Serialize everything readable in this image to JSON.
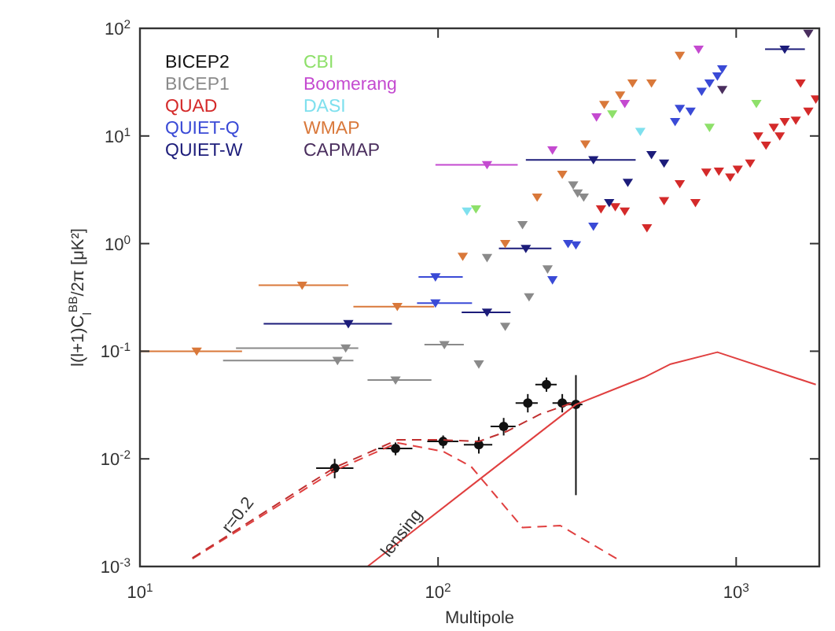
{
  "chart_data": {
    "type": "scatter",
    "xlabel": "Multipole",
    "ylabel": "l(l+1)C$_{l}$$^{BB}$/2π [μK²]",
    "log": "xy",
    "grid": false,
    "legend": "top left",
    "marker": "triangle",
    "xlim": [
      10,
      1900
    ],
    "ylim": [
      0.001,
      100
    ],
    "xticks": [
      {
        "value": 10,
        "label": "10$^{1}$"
      },
      {
        "value": 100,
        "label": "10$^{2}$"
      },
      {
        "value": 1000,
        "label": "10$^{3}$"
      }
    ],
    "yticks": [
      {
        "value": 0.001,
        "label": "10$^{-3}$"
      },
      {
        "value": 0.01,
        "label": "10$^{-2}$"
      },
      {
        "value": 0.1,
        "label": "10$^{-1}$"
      },
      {
        "value": 1,
        "label": "10$^{0}$"
      },
      {
        "value": 10,
        "label": "10$^{1}$"
      },
      {
        "value": 100,
        "label": "10$^{2}$"
      }
    ],
    "annotations": [
      {
        "text": "r=0.2",
        "x": 22,
        "y": 0.0028
      },
      {
        "text": "lensing",
        "x": 78,
        "y": 0.0019
      }
    ],
    "series": [
      {
        "name": "BICEP2",
        "color": "#111111",
        "marker": "circle",
        "x": [
          45,
          72,
          104,
          137,
          166,
          200,
          231,
          261,
          290
        ],
        "values": [
          0.0082,
          0.0125,
          0.0145,
          0.0135,
          0.02,
          0.033,
          0.049,
          0.033,
          0.032
        ],
        "errors": [
          [
            0.0066,
            0.01
          ],
          [
            0.0108,
            0.0142
          ],
          [
            0.0125,
            0.0165
          ],
          [
            0.0112,
            0.016
          ],
          [
            0.0165,
            0.024
          ],
          [
            0.027,
            0.04
          ],
          [
            0.042,
            0.057
          ],
          [
            0.027,
            0.04
          ],
          [
            0.0046,
            0.06
          ]
        ],
        "xerrors": [
          [
            39,
            52
          ],
          [
            63,
            82
          ],
          [
            92,
            117
          ],
          [
            122,
            152
          ],
          [
            150,
            182
          ],
          [
            182,
            216
          ],
          [
            212,
            250
          ],
          [
            242,
            280
          ],
          [
            272,
            305
          ]
        ]
      },
      {
        "name": "BICEP1",
        "color": "#8a8a8a",
        "x": [
          284,
          294,
          308,
          192,
          146,
          233,
          202,
          168,
          105,
          137,
          49,
          46,
          72
        ],
        "values": [
          3.5,
          2.95,
          2.7,
          1.5,
          0.74,
          0.58,
          0.32,
          0.17,
          0.115,
          0.076,
          0.107,
          0.082,
          0.054
        ],
        "xerrors": [
          null,
          null,
          null,
          null,
          null,
          null,
          null,
          null,
          [
            90,
            122
          ],
          null,
          [
            21,
            54
          ],
          [
            19,
            52
          ],
          [
            58,
            95
          ]
        ]
      },
      {
        "name": "QUAD",
        "color": "#d42a2a",
        "x": [
          1644,
          1850,
          1746,
          1585,
          1455,
          1337,
          1185,
          1259,
          1400,
          1114,
          1012,
          955,
          875,
          794,
          647,
          573,
          730,
          502,
          423,
          393,
          352
        ],
        "values": [
          31,
          22,
          17,
          14,
          13.6,
          12,
          10,
          8.2,
          10,
          5.6,
          4.9,
          4.15,
          4.7,
          4.6,
          3.6,
          2.5,
          2.4,
          1.4,
          2,
          2.2,
          2.1
        ]
      },
      {
        "name": "QUIET-Q",
        "color": "#3a4ad6",
        "x": [
          766,
          814,
          865,
          898,
          647,
          703,
          624,
          332,
          273,
          290,
          242,
          98,
          98
        ],
        "values": [
          26,
          31,
          36,
          42,
          18,
          17,
          13.6,
          1.45,
          1,
          0.97,
          0.46,
          0.49,
          0.28
        ],
        "xerrors": [
          null,
          null,
          null,
          null,
          null,
          null,
          null,
          null,
          null,
          null,
          null,
          [
            86,
            121
          ],
          [
            85,
            130
          ]
        ]
      },
      {
        "name": "QUIET-W",
        "color": "#1c1c7a",
        "x": [
          1455,
          332,
          433,
          520,
          573,
          375,
          197,
          50,
          146
        ],
        "values": [
          64,
          6,
          3.7,
          6.7,
          5.6,
          2.4,
          0.9,
          0.18,
          0.23
        ],
        "xerrors": [
          [
            1250,
            1700
          ],
          [
            197,
            460
          ],
          null,
          null,
          null,
          null,
          [
            160,
            240
          ],
          [
            26,
            70
          ],
          [
            120,
            175
          ]
        ]
      },
      {
        "name": "CBI",
        "color": "#8ee06a",
        "x": [
          1169,
          814,
          384,
          134
        ],
        "values": [
          20,
          12,
          16,
          2.1
        ]
      },
      {
        "name": "Boomerang",
        "color": "#c44ad0",
        "x": [
          748,
          423,
          340,
          146,
          242
        ],
        "values": [
          64,
          20,
          15,
          5.4,
          7.4
        ],
        "xerrors": [
          null,
          null,
          null,
          [
            98,
            185
          ],
          null
        ]
      },
      {
        "name": "DASI",
        "color": "#7fe0ee",
        "x": [
          477,
          125
        ],
        "values": [
          11,
          2
        ]
      },
      {
        "name": "WMAP",
        "color": "#d9783a",
        "x": [
          647,
          449,
          520,
          408,
          361,
          312,
          261,
          215,
          168,
          121,
          35,
          15.5,
          73
        ],
        "values": [
          56,
          31,
          31,
          24,
          19.6,
          8.4,
          4.4,
          2.7,
          1,
          0.76,
          0.41,
          0.1,
          0.26
        ],
        "xerrors": [
          null,
          null,
          null,
          null,
          null,
          null,
          null,
          null,
          null,
          null,
          [
            25,
            50
          ],
          [
            10,
            22
          ],
          [
            52,
            97
          ]
        ]
      },
      {
        "name": "CAPMAP",
        "color": "#4a2e5e",
        "x": [
          1746,
          898
        ],
        "values": [
          90,
          27
        ]
      },
      {
        "type": "line",
        "color": "#e04040",
        "line_style": "dashed",
        "marker": "none",
        "x": [
          15,
          45.5,
          73,
          104,
          129,
          192,
          257,
          398
        ],
        "values": [
          0.00118,
          0.0079,
          0.0141,
          0.0117,
          0.0085,
          0.0023,
          0.0024,
          0.00118
        ]
      },
      {
        "type": "line",
        "color": "#e04040",
        "line_style": "solid",
        "marker": "none",
        "x": [
          58,
          129,
          290,
          490,
          603,
          865,
          1850
        ],
        "values": [
          0.001,
          0.0056,
          0.032,
          0.057,
          0.076,
          0.098,
          0.049
        ]
      },
      {
        "type": "line",
        "color": "#c03030",
        "line_style": "dashed",
        "marker": "none",
        "x": [
          15,
          45,
          73,
          104,
          137,
          170,
          220,
          290
        ],
        "values": [
          0.0012,
          0.0083,
          0.015,
          0.015,
          0.0145,
          0.018,
          0.026,
          0.034
        ]
      }
    ]
  }
}
